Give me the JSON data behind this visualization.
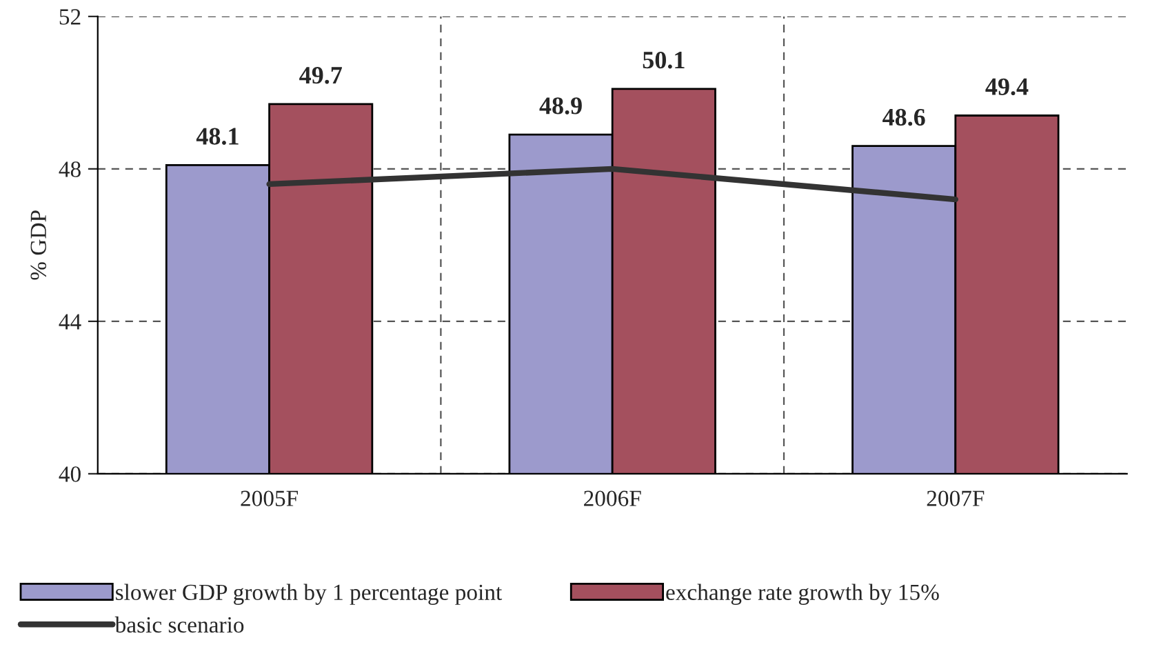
{
  "chart_data": {
    "type": "bar",
    "ylabel": "% GDP",
    "categories": [
      "2005F",
      "2006F",
      "2007F"
    ],
    "series": [
      {
        "name": "slower GDP growth by 1 percentage point",
        "color": "#9c9acc",
        "values": [
          48.1,
          48.9,
          48.6
        ],
        "value_labels": [
          "48.1",
          "48.9",
          "48.6"
        ]
      },
      {
        "name": "exchange rate growth by 15%",
        "color": "#a4505e",
        "values": [
          49.7,
          50.1,
          49.4
        ],
        "value_labels": [
          "49.7",
          "50.1",
          "49.4"
        ]
      },
      {
        "name": "basic scenario",
        "type": "line",
        "color": "#333333",
        "values": [
          47.6,
          48.0,
          47.2
        ]
      }
    ],
    "ylim": [
      40,
      52
    ],
    "yticks": [
      40,
      44,
      48,
      52
    ],
    "grid": true,
    "legend": "bottom",
    "marker": "none",
    "line_style": "solid"
  }
}
